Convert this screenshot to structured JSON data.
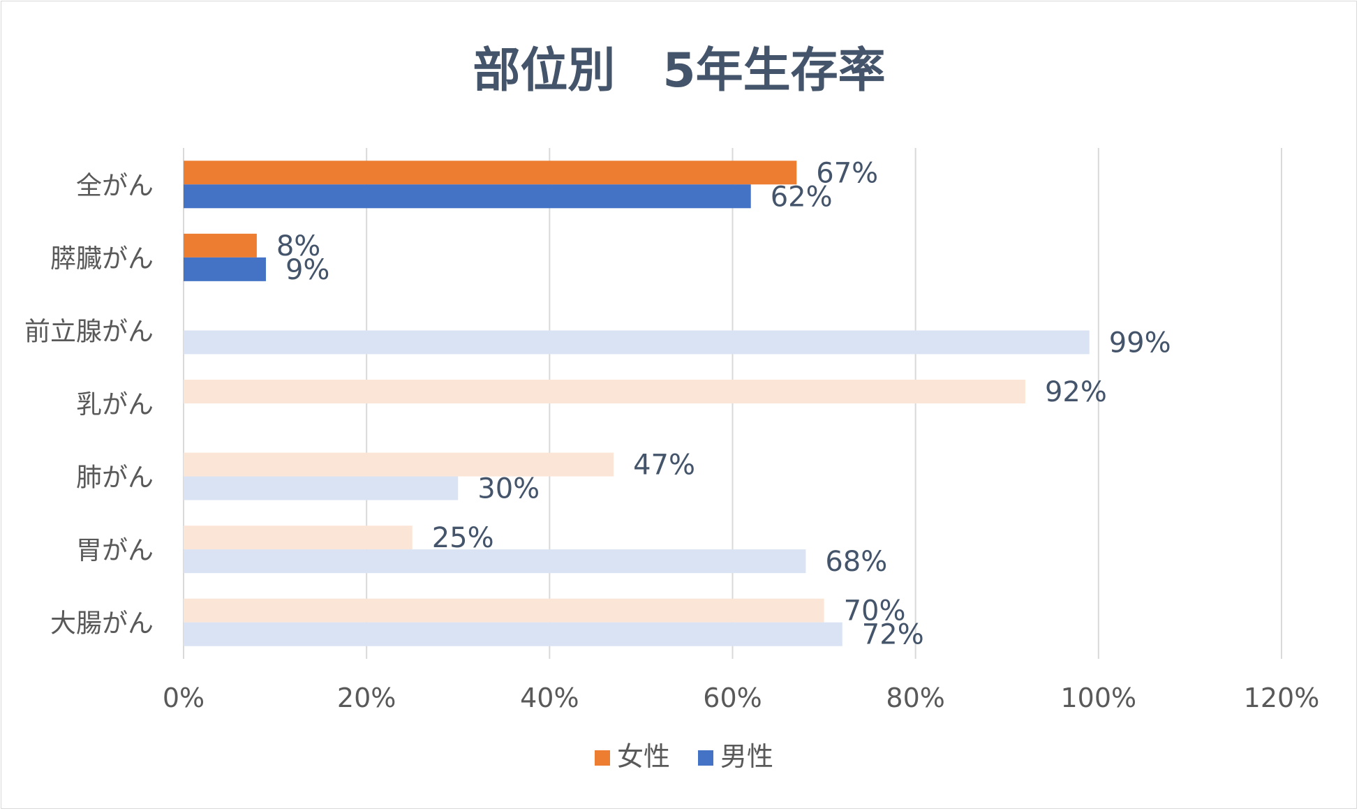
{
  "chart_data": {
    "type": "bar",
    "orientation": "horizontal",
    "title": "部位別　5年生存率",
    "categories": [
      "全がん",
      "膵臓がん",
      "前立腺がん",
      "乳がん",
      "肺がん",
      "胃がん",
      "大腸がん"
    ],
    "series": [
      {
        "name": "女性",
        "color": "#ed7d31",
        "highlight_color": "#ed7d31",
        "faded_color": "#fbe5d6",
        "values": [
          0.67,
          0.08,
          null,
          0.92,
          0.47,
          0.25,
          0.7
        ],
        "labels": [
          "67%",
          "8%",
          "",
          "92%",
          "47%",
          "25%",
          "70%"
        ]
      },
      {
        "name": "男性",
        "color": "#4472c4",
        "highlight_color": "#4472c4",
        "faded_color": "#dae3f3",
        "values": [
          0.62,
          0.09,
          0.99,
          null,
          0.3,
          0.68,
          0.72
        ],
        "labels": [
          "62%",
          "9%",
          "99%",
          "",
          "30%",
          "68%",
          "72%"
        ]
      }
    ],
    "highlighted_categories": [
      "全がん",
      "膵臓がん"
    ],
    "xlim": [
      0,
      1.2
    ],
    "x_ticks": [
      0,
      0.2,
      0.4,
      0.6,
      0.8,
      1.0,
      1.2
    ],
    "x_tick_labels": [
      "0%",
      "20%",
      "40%",
      "60%",
      "80%",
      "100%",
      "120%"
    ],
    "grid": "vertical",
    "legend": "bottom-center"
  }
}
